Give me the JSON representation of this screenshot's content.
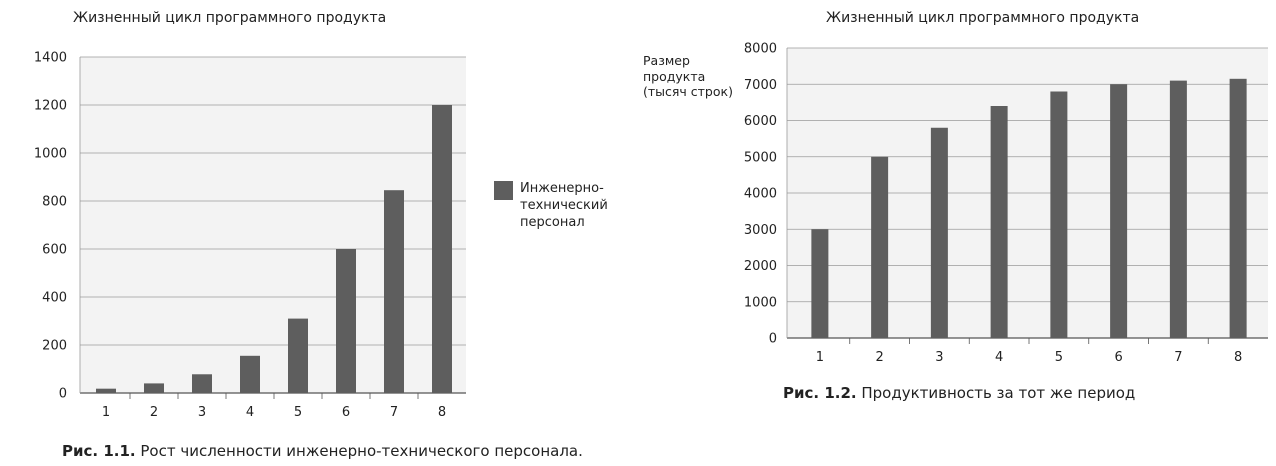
{
  "chart_data": [
    {
      "type": "bar",
      "title": "Жизненный цикл программного продукта",
      "categories": [
        "1",
        "2",
        "3",
        "4",
        "5",
        "6",
        "7",
        "8"
      ],
      "series": [
        {
          "name": "Инженерно-технический персонал",
          "values": [
            18,
            40,
            78,
            155,
            310,
            600,
            845,
            1200
          ]
        }
      ],
      "yticks": [
        "0",
        "200",
        "400",
        "600",
        "800",
        "1000",
        "1200",
        "1400"
      ],
      "ylim": [
        0,
        1400
      ],
      "legend": {
        "label": "Инженерно-технический персонал",
        "position": "right"
      },
      "grid": true,
      "color": "#5e5e5e",
      "caption": {
        "label": "Рис. 1.1.",
        "text": " Рост численности инженерно-технического персонала."
      }
    },
    {
      "type": "bar",
      "title": "Жизненный цикл программного продукта",
      "categories": [
        "1",
        "2",
        "3",
        "4",
        "5",
        "6",
        "7",
        "8"
      ],
      "series": [
        {
          "values": [
            3000,
            5000,
            5800,
            6400,
            6800,
            7000,
            7100,
            7150
          ]
        }
      ],
      "yticks": [
        "0",
        "1000",
        "2000",
        "3000",
        "4000",
        "5000",
        "6000",
        "7000",
        "8000"
      ],
      "ylim": [
        0,
        8000
      ],
      "ylabel": "Размер продукта (тысяч строк)",
      "grid": true,
      "color": "#5e5e5e",
      "caption": {
        "label": "Рис. 1.2.",
        "text": " Продуктивность за тот же период"
      }
    }
  ]
}
